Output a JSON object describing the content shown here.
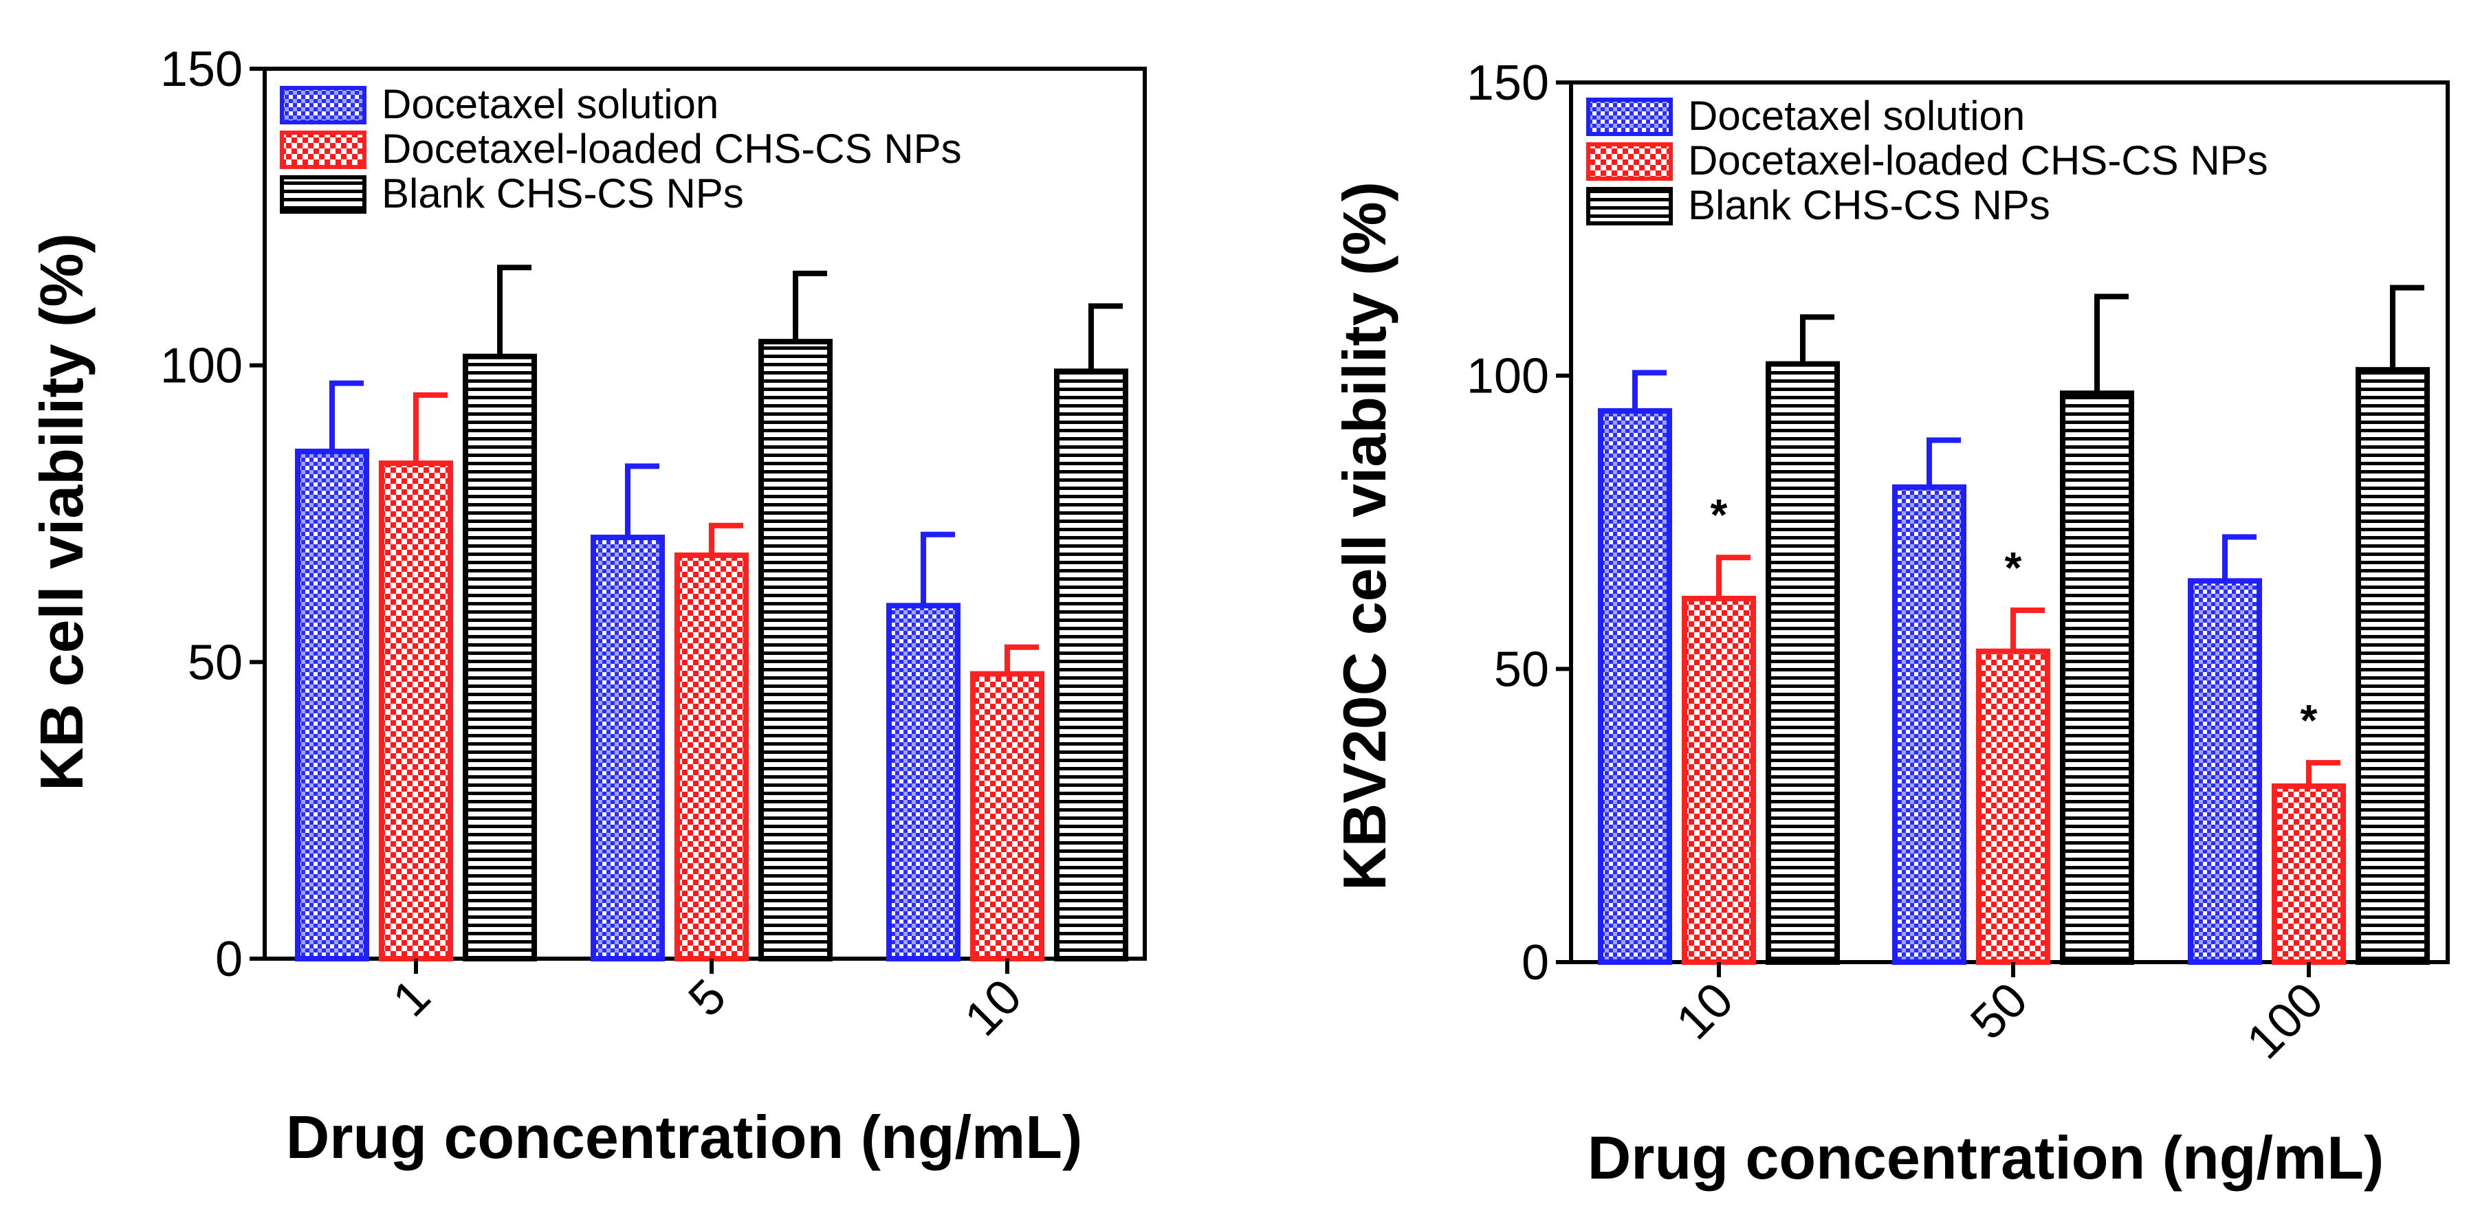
{
  "chart_data": [
    {
      "type": "bar",
      "ylabel": "KB cell viability (%)",
      "xlabel": "Drug concentration (ng/mL)",
      "ylim": [
        0,
        150
      ],
      "yticks": [
        "0",
        "50",
        "100",
        "150"
      ],
      "categories": [
        "1",
        "5",
        "10"
      ],
      "legend_position": "top-left",
      "series": [
        {
          "name": "Docetaxel solution",
          "color": "#1f1fff",
          "pattern": "checker-blue",
          "values": [
            85.5,
            71,
            59.5
          ],
          "errors": [
            11.5,
            12,
            12
          ],
          "marks": [
            "",
            "",
            ""
          ]
        },
        {
          "name": "Docetaxel-loaded CHS-CS NPs",
          "color": "#ff2020",
          "pattern": "checker-red",
          "values": [
            83.5,
            68,
            48
          ],
          "errors": [
            11.5,
            5,
            4.5
          ],
          "marks": [
            "",
            "",
            ""
          ]
        },
        {
          "name": "Blank CHS-CS NPs",
          "color": "#000000",
          "pattern": "hstripes",
          "values": [
            101.5,
            104,
            99
          ],
          "errors": [
            15,
            11.5,
            11
          ],
          "marks": [
            "",
            "",
            ""
          ]
        }
      ]
    },
    {
      "type": "bar",
      "ylabel": "KBV20C cell viability (%)",
      "xlabel": "Drug concentration (ng/mL)",
      "ylim": [
        0,
        150
      ],
      "yticks": [
        "0",
        "50",
        "100",
        "150"
      ],
      "categories": [
        "10",
        "50",
        "100"
      ],
      "legend_position": "top-left",
      "series": [
        {
          "name": "Docetaxel solution",
          "color": "#1f1fff",
          "pattern": "checker-blue",
          "values": [
            94,
            81,
            65
          ],
          "errors": [
            6.5,
            8,
            7.5
          ],
          "marks": [
            "",
            "",
            ""
          ]
        },
        {
          "name": "Docetaxel-loaded CHS-CS NPs",
          "color": "#ff2020",
          "pattern": "checker-red",
          "values": [
            62,
            53,
            30
          ],
          "errors": [
            7,
            7,
            4
          ],
          "marks": [
            "*",
            "*",
            "*"
          ]
        },
        {
          "name": "Blank CHS-CS NPs",
          "color": "#000000",
          "pattern": "hstripes",
          "values": [
            102,
            97,
            101
          ],
          "errors": [
            8,
            16.5,
            14
          ],
          "marks": [
            "",
            "",
            ""
          ]
        }
      ]
    }
  ]
}
